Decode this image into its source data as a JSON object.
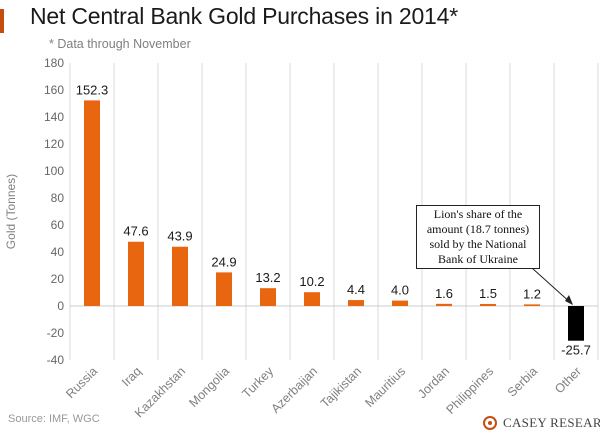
{
  "header": {
    "title": "Net Central Bank Gold Purchases in 2014*",
    "subtitle": "* Data through November"
  },
  "footer": {
    "source": "Source: IMF, WGC",
    "logo": "CASEY RESEARCH"
  },
  "annotation": {
    "text": "Lion's share of the amount (18.7 tonnes) sold by the National Bank of Ukraine"
  },
  "colors": {
    "positive_bar": "#e8660f",
    "negative_bar": "#000000",
    "title_accent": "#c44e10",
    "grid": "#d9d9d9"
  },
  "chart_data": {
    "type": "bar",
    "title": "Net Central Bank Gold Purchases in 2014*",
    "subtitle": "* Data through November",
    "xlabel": "",
    "ylabel": "Gold  (Tonnes)",
    "ylim": [
      -40,
      180
    ],
    "yticks": [
      -40,
      -20,
      0,
      20,
      40,
      60,
      80,
      100,
      120,
      140,
      160,
      180
    ],
    "grid": "vertical",
    "categories": [
      "Russia",
      "Iraq",
      "Kazakhstan",
      "Mongolia",
      "Turkey",
      "Azerbaijan",
      "Tajikistan",
      "Mauritius",
      "Jordan",
      "Philippines",
      "Serbia",
      "Other"
    ],
    "values": [
      152.3,
      47.6,
      43.9,
      24.9,
      13.2,
      10.2,
      4.4,
      4.0,
      1.6,
      1.5,
      1.2,
      -25.7
    ],
    "value_labels": [
      "152.3",
      "47.6",
      "43.9",
      "24.9",
      "13.2",
      "10.2",
      "4.4",
      "4.0",
      "1.6",
      "1.5",
      "1.2",
      "-25.7"
    ]
  }
}
